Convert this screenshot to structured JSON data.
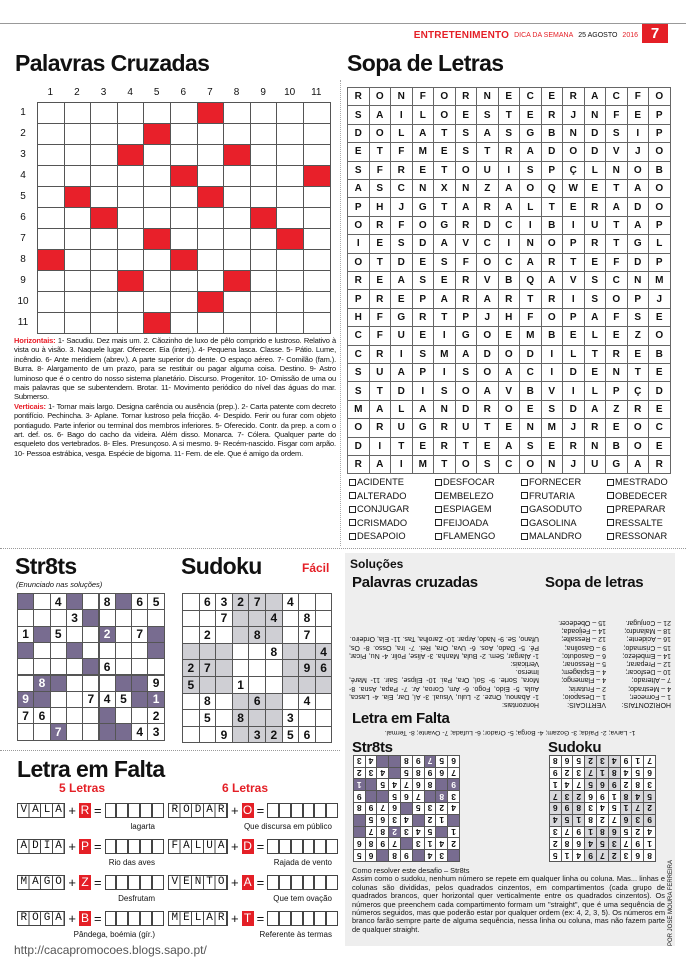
{
  "header": {
    "section": "ENTRETENIMENTO",
    "label": "DICA DA SEMANA",
    "date": "25 AGOSTO",
    "year": "2016",
    "page": "7"
  },
  "colors": {
    "accent": "#e41f26",
    "str8ts_black": "#786c90",
    "sudoku_shade": "#cfcfd4"
  },
  "crossword": {
    "title": "Palavras Cruzadas",
    "columns": [
      "1",
      "2",
      "3",
      "4",
      "5",
      "6",
      "7",
      "8",
      "9",
      "10",
      "11"
    ],
    "rows": [
      "1",
      "2",
      "3",
      "4",
      "5",
      "6",
      "7",
      "8",
      "9",
      "10",
      "11"
    ],
    "black_cells": [
      [
        1,
        7
      ],
      [
        2,
        5
      ],
      [
        3,
        4
      ],
      [
        3,
        8
      ],
      [
        4,
        6
      ],
      [
        4,
        11
      ],
      [
        5,
        2
      ],
      [
        5,
        7
      ],
      [
        6,
        3
      ],
      [
        6,
        9
      ],
      [
        7,
        5
      ],
      [
        7,
        10
      ],
      [
        8,
        1
      ],
      [
        8,
        6
      ],
      [
        9,
        4
      ],
      [
        9,
        8
      ],
      [
        10,
        7
      ],
      [
        11,
        5
      ]
    ],
    "horizontal_label": "Horizontais:",
    "horizontal_text": "1- Sacudiu. Dez mais um.  2. Cãozinho de luxo de pêlo comprido e lustroso. Relativo à vista ou à visão.  3. Naquele lugar. Oferecer. Eia (interj.).  4- Pequena lasca. Classe.  5- Pátio. Lume, incêndio.  6- Ante meridiem (abrev.). A parte superior do dente. O espaço aéreo.  7- Comilão (fam.). Burra.  8- Alargamento de um prazo, para se restituir ou pagar alguma coisa. Destino.  9- Astro luminoso que é o centro do nosso sistema planetário. Discurso. Progenitor.  10- Omissão de uma ou mais palavras que se subentendem. Brotar.  11- Movimento periódico do nível das águas do mar. Submerso.",
    "vertical_label": "Verticais:",
    "vertical_text": "1- Tornar mais largo. Designa carência ou ausência (prep.).  2- Carta patente com decreto pontifício. Pechincha.  3- Aplane. Tornar lustroso pela fricção.  4- Despido. Ferir ou furar com objeto pontiagudo. Parte inferior ou terminal dos membros inferiores.  5- Oferecido. Contr. da prep. a com o art. def. os.  6- Bago do cacho da videira. Além disso. Monarca.  7- Cólera. Qualquer parte do esqueleto dos vertebrados.  8- Eles. Presunçoso. A si mesmo.  9- Recém-nascido. Fisgar com arpão.  10- Pessoa estrábica, vesga. Espécie de bigorna.  11- Fem. de ele. Que é amigo da ordem."
  },
  "wordsearch": {
    "title": "Sopa de Letras",
    "grid": [
      "RONFORNECERACFO",
      "SAILOESTERJNFEP",
      "DOLATSASGBNDSIP",
      "ETFMESTRADODVJO",
      "SFRETOUISPÇLNOB",
      "ASCNXNZAOQWETAO",
      "PHJGTARALTERADO",
      "ORFOGRDCIBIUTAP",
      "IESDAVCINOPRTGL",
      "OTDESFOCARTEFDP",
      "REASERVBQAVSCNM",
      "PREPARARTRISOPJ",
      "HFGRTPJHFOPAFSE",
      "CFUEIGOEMBELEZO",
      "CRISMADODILTREB",
      "SUAPISOACIDENTE",
      "STDISOAVBVILPÇD",
      "MALANDROESDAZRE",
      "ORUGRUTENMJREOC",
      "DITERTEASERNBOE",
      "RAIMTOSCONJUGAR"
    ],
    "words": [
      [
        "ACIDENTE",
        "ALTERADO",
        "CONJUGAR",
        "CRISMADO",
        "DESAPOIO"
      ],
      [
        "DESFOCAR",
        "EMBELEZO",
        "ESPIAGEM",
        "FEIJOADA",
        "FLAMENGO"
      ],
      [
        "FORNECER",
        "FRUTARIA",
        "GASODUTO",
        "GASOLINA",
        "MALANDRO"
      ],
      [
        "MESTRADO",
        "OBEDECER",
        "PREPARAR",
        "RESSALTE",
        "RESSONAR"
      ]
    ]
  },
  "str8ts": {
    "title": "Str8ts",
    "note": "(Enunciado nas soluções)",
    "grid": [
      [
        "#",
        "",
        "4",
        "#",
        "",
        "8",
        "#",
        "6",
        "5"
      ],
      [
        "",
        "",
        "",
        "3",
        "#",
        "",
        "",
        "",
        ""
      ],
      [
        "1",
        "#",
        "5",
        "",
        "",
        "#2",
        "",
        "7",
        "#"
      ],
      [
        "#",
        "",
        "",
        "#",
        "",
        "",
        "",
        "",
        "#"
      ],
      [
        "",
        "",
        "",
        "",
        "#",
        "6",
        "",
        "",
        ""
      ],
      [
        "",
        "#8",
        "#",
        "",
        "",
        "",
        "#",
        "#",
        "9"
      ],
      [
        "#9",
        "#",
        "",
        "",
        "7",
        "4",
        "5",
        "#",
        "#1"
      ],
      [
        "7",
        "6",
        "",
        "",
        "",
        "#",
        "",
        "",
        "2"
      ],
      [
        "",
        "",
        "#7",
        "",
        "",
        "#",
        "#",
        "4",
        "3"
      ]
    ]
  },
  "sudoku": {
    "title": "Sudoku",
    "level": "Fácil",
    "grid": [
      [
        "",
        "6",
        "3",
        "2",
        "7",
        "",
        "4",
        "",
        ""
      ],
      [
        "",
        "",
        "7",
        "",
        "",
        "4",
        "",
        "8",
        ""
      ],
      [
        "",
        "2",
        "",
        "",
        "8",
        "",
        "",
        "7",
        ""
      ],
      [
        "",
        "",
        "",
        "",
        "",
        "8",
        "",
        "",
        "4"
      ],
      [
        "2",
        "7",
        "",
        "",
        "",
        "",
        "",
        "9",
        "6"
      ],
      [
        "5",
        "",
        "",
        "1",
        "",
        "",
        "",
        "",
        ""
      ],
      [
        "",
        "8",
        "",
        "",
        "6",
        "",
        "",
        "4",
        ""
      ],
      [
        "",
        "5",
        "",
        "8",
        "",
        "",
        "3",
        "",
        ""
      ],
      [
        "",
        "",
        "9",
        "",
        "3",
        "2",
        "5",
        "6",
        ""
      ]
    ]
  },
  "letra_em_falta": {
    "title": "Letra em Falta",
    "groups": [
      {
        "heading": "5 Letras",
        "items": [
          {
            "word": "VALA",
            "letter": "R",
            "slots": 5,
            "hint": "lagarta"
          },
          {
            "word": "ADIA",
            "letter": "P",
            "slots": 5,
            "hint": "Rio das aves"
          },
          {
            "word": "MAGO",
            "letter": "Z",
            "slots": 5,
            "hint": "Desfrutam"
          },
          {
            "word": "ROGA",
            "letter": "B",
            "slots": 5,
            "hint": "Pândega, boémia (gír.)"
          }
        ]
      },
      {
        "heading": "6 Letras",
        "items": [
          {
            "word": "RODAR",
            "letter": "O",
            "slots": 6,
            "hint": "Que discursa em público"
          },
          {
            "word": "FALUA",
            "letter": "D",
            "slots": 6,
            "hint": "Rajada de vento"
          },
          {
            "word": "VENTO",
            "letter": "A",
            "slots": 6,
            "hint": "Que tem ovação"
          },
          {
            "word": "MELAR",
            "letter": "T",
            "slots": 6,
            "hint": "Referente às termas"
          }
        ]
      }
    ]
  },
  "solutions": {
    "title": "Soluções",
    "crossword_title": "Palavras cruzadas",
    "crossword_text": "Horizontais:\n1- Abanou, Onze. 2- Lulu, Visual. 3- Aí, Dar, Eia. 4- Lasca, Aula. 5- Eido, Fogo. 6- Am, Coroa, Ar. 7- Papa, Asna. 8- Mora, Sorte. 9- Sol, Ora, Pai. 10- Elipse, Sair. 11- Maré, Imerso.\nVerticais:\n1- Alargar, Sem. 2- Bula, Manha. 3- Alise, Polir. 4- Nu, Picar, Pé. 5- Dado, Aos. 6- Uva, Ora, Rei. 7- Ira, Osso. 8- Os, Ufano, Se. 9- Nado, Arpar. 10- Zarolha, Tas. 11- Ela, Ordeiro.",
    "wordsearch_title": "Sopa de letras",
    "wordsearch_h": "HORIZONTAIS:\n1 – Fornecer;\n4 – Mestrado;\n7 – Alterado;\n10 – Desfocar;\n12 – Preparar;\n14 – Embelezo;\n15 – Crismado;\n16 – Acidente;\n18 – Malandro;\n21 – Conjugar.",
    "wordsearch_v": "VERTICAIS:\n1 – Desapoio;\n2 – Frutaria;\n4 – Flamengo;\n4 – Espiagem;\n5 – Ressonar;\n6 – Gasoduto;\n9 – Gasolina;\n12 – Ressalte;\n14 – Feijoada;\n15 – Obedecer.",
    "letra_title": "Letra em Falta",
    "letra_text": "1- Larva; 2- Paída; 3- Gozam; 4- Borga; 5- Orador; 6- Lufada; 7- Ovante; 8- Termal.",
    "str8ts_title": "Str8ts",
    "str8ts_grid": [
      [
        "#",
        "3",
        "4",
        "#",
        "9",
        "8",
        "#",
        "6",
        "5"
      ],
      [
        "2",
        "4",
        "1",
        "3",
        "#",
        "7",
        "9",
        "8",
        "6"
      ],
      [
        "1",
        "#",
        "5",
        "4",
        "3",
        "#2",
        "8",
        "7",
        "#"
      ],
      [
        "#",
        "1",
        "2",
        "#",
        "4",
        "3",
        "6",
        "5",
        "#"
      ],
      [
        "4",
        "2",
        "3",
        "5",
        "#",
        "6",
        "7",
        "9",
        "8"
      ],
      [
        "3",
        "#8",
        "#",
        "7",
        "6",
        "5",
        "#",
        "#",
        "9"
      ],
      [
        "#9",
        "#",
        "8",
        "6",
        "7",
        "4",
        "5",
        "#",
        "#1"
      ],
      [
        "7",
        "6",
        "9",
        "8",
        "5",
        "#",
        "4",
        "3",
        "2"
      ],
      [
        "6",
        "5",
        "#7",
        "9",
        "8",
        "#",
        "#",
        "4",
        "3"
      ]
    ],
    "sudoku_title": "Sudoku",
    "sudoku_grid": [
      [
        "8",
        "6",
        "3",
        "2",
        "7",
        "9",
        "4",
        "1",
        "5"
      ],
      [
        "1",
        "9",
        "7",
        "3",
        "5",
        "4",
        "6",
        "8",
        "2"
      ],
      [
        "4",
        "2",
        "5",
        "6",
        "8",
        "1",
        "9",
        "7",
        "3"
      ],
      [
        "9",
        "3",
        "6",
        "7",
        "2",
        "8",
        "1",
        "5",
        "4"
      ],
      [
        "2",
        "7",
        "1",
        "5",
        "4",
        "3",
        "8",
        "9",
        "6"
      ],
      [
        "5",
        "4",
        "8",
        "1",
        "9",
        "6",
        "2",
        "3",
        "7"
      ],
      [
        "3",
        "8",
        "2",
        "9",
        "6",
        "5",
        "7",
        "4",
        "1"
      ],
      [
        "6",
        "5",
        "4",
        "8",
        "1",
        "7",
        "3",
        "2",
        "9"
      ],
      [
        "7",
        "1",
        "9",
        "4",
        "3",
        "2",
        "5",
        "6",
        "8"
      ]
    ],
    "howto_title": "Como resolver este desafio – Str8ts",
    "howto_text": "Assim como o sudoku, nenhum número se repete em qualquer linha ou coluna. Mas... linhas e colunas são divididas, pelos quadrados cinzentos, em compartimentos (cada grupo de quadrados brancos, quer horizontal quer verticalmente entre os quadrados cinzentos). Os números que preenchem cada compartimento formam um \"straight\", que é uma sequência de números seguidos, mas que poderão estar por qualquer ordem (ex: 4, 2, 3, 5). Os números em branco farão sempre parte de alguma sequência, nessa linha ou coluna, mas não fazem parte de qualquer straight."
  },
  "credit": "POR JOSÉ MOURA FERREIRA",
  "watermark": "http://cacapromocoes.blogs.sapo.pt/"
}
